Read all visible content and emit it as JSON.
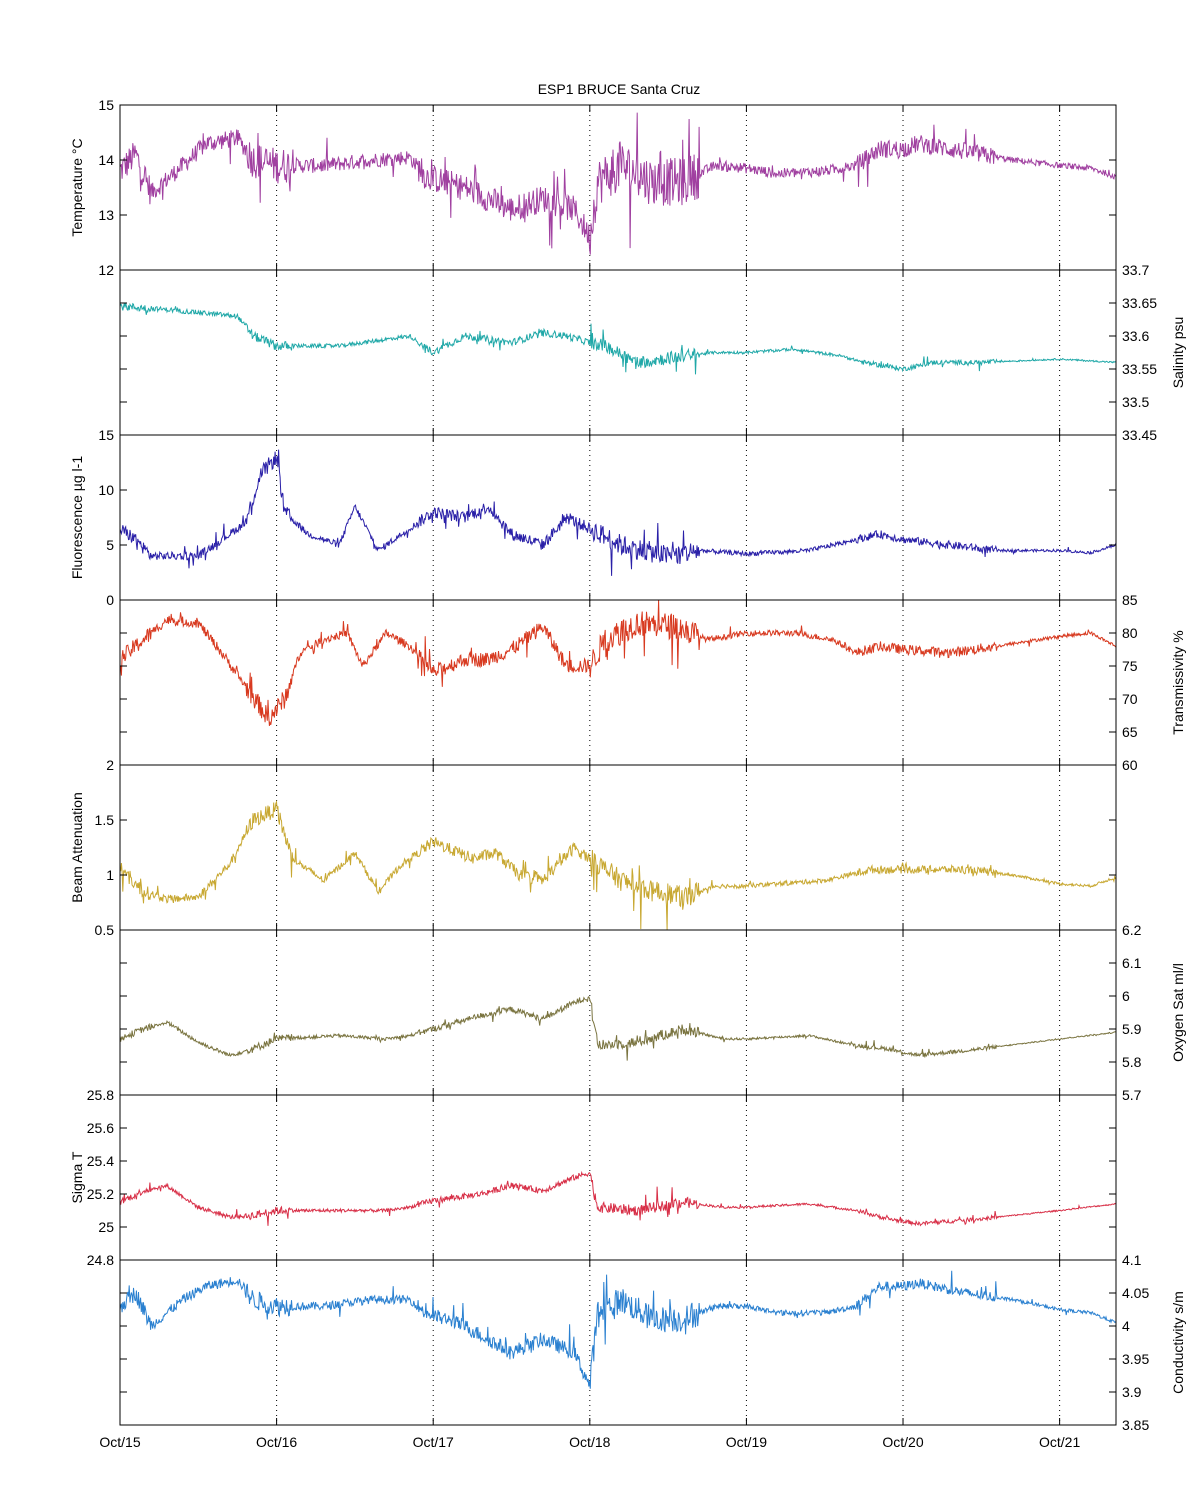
{
  "chart_data": {
    "type": "line",
    "title": "ESP1 BRUCE Santa Cruz",
    "x_tick_labels": [
      "Oct/15",
      "Oct/16",
      "Oct/17",
      "Oct/18",
      "Oct/19",
      "Oct/20",
      "Oct/21"
    ],
    "x_range_days": [
      15,
      21.36
    ],
    "grid": "vertical dotted at day ticks",
    "panels": [
      {
        "id": "temperature",
        "ylabel": "Temperature °C",
        "ylabel_side": "left",
        "ylim": [
          12,
          15
        ],
        "ticks": [
          12,
          13,
          14,
          15
        ],
        "tick_labels": [
          "12",
          "13",
          "14",
          "15"
        ],
        "color": "#a040a0",
        "amplitude": 0.55,
        "series": [
          [
            15.0,
            13.8
          ],
          [
            15.1,
            14.1
          ],
          [
            15.2,
            13.4
          ],
          [
            15.4,
            13.9
          ],
          [
            15.55,
            14.3
          ],
          [
            15.75,
            14.4
          ],
          [
            15.85,
            14.0
          ],
          [
            16.0,
            13.9
          ],
          [
            16.3,
            13.9
          ],
          [
            16.6,
            14.0
          ],
          [
            16.85,
            14.05
          ],
          [
            16.95,
            13.7
          ],
          [
            17.2,
            13.5
          ],
          [
            17.35,
            13.3
          ],
          [
            17.5,
            13.1
          ],
          [
            17.7,
            13.3
          ],
          [
            17.9,
            13.1
          ],
          [
            18.0,
            12.6
          ],
          [
            18.05,
            13.6
          ],
          [
            18.2,
            13.9
          ],
          [
            18.4,
            13.6
          ],
          [
            18.6,
            13.6
          ],
          [
            18.8,
            13.9
          ],
          [
            19.0,
            13.85
          ],
          [
            19.2,
            13.75
          ],
          [
            19.5,
            13.8
          ],
          [
            19.7,
            13.9
          ],
          [
            19.85,
            14.2
          ],
          [
            20.0,
            14.2
          ],
          [
            20.1,
            14.3
          ],
          [
            20.4,
            14.15
          ],
          [
            20.7,
            14.0
          ],
          [
            21.0,
            13.9
          ],
          [
            21.2,
            13.85
          ],
          [
            21.36,
            13.7
          ]
        ]
      },
      {
        "id": "salinity",
        "ylabel": "Salinity psu",
        "ylabel_side": "right",
        "ylim": [
          33.45,
          33.7
        ],
        "ticks": [
          33.45,
          33.5,
          33.55,
          33.6,
          33.65,
          33.7
        ],
        "tick_labels": [
          "33.45",
          "33.5",
          "33.55",
          "33.6",
          "33.65",
          "33.7"
        ],
        "color": "#20a8a8",
        "amplitude": 0.012,
        "series": [
          [
            15.0,
            33.645
          ],
          [
            15.3,
            33.64
          ],
          [
            15.75,
            33.63
          ],
          [
            15.85,
            33.6
          ],
          [
            16.0,
            33.585
          ],
          [
            16.4,
            33.585
          ],
          [
            16.7,
            33.595
          ],
          [
            16.85,
            33.6
          ],
          [
            17.0,
            33.575
          ],
          [
            17.2,
            33.6
          ],
          [
            17.5,
            33.59
          ],
          [
            17.7,
            33.605
          ],
          [
            17.85,
            33.6
          ],
          [
            18.0,
            33.59
          ],
          [
            18.1,
            33.585
          ],
          [
            18.3,
            33.56
          ],
          [
            18.6,
            33.57
          ],
          [
            18.8,
            33.575
          ],
          [
            19.0,
            33.575
          ],
          [
            19.3,
            33.58
          ],
          [
            19.6,
            33.57
          ],
          [
            19.75,
            33.56
          ],
          [
            20.0,
            33.55
          ],
          [
            20.2,
            33.56
          ],
          [
            20.5,
            33.56
          ],
          [
            21.0,
            33.565
          ],
          [
            21.36,
            33.56
          ]
        ]
      },
      {
        "id": "fluorescence",
        "ylabel": "Fluorescence µg l-1",
        "ylabel_side": "left",
        "ylim": [
          0,
          15
        ],
        "ticks": [
          0,
          5,
          10,
          15
        ],
        "tick_labels": [
          "0",
          "5",
          "10",
          "15"
        ],
        "color": "#2a20a8",
        "amplitude": 1.2,
        "series": [
          [
            15.0,
            6.5
          ],
          [
            15.1,
            5.5
          ],
          [
            15.2,
            4.0
          ],
          [
            15.5,
            4.0
          ],
          [
            15.7,
            6.0
          ],
          [
            15.8,
            7.0
          ],
          [
            15.9,
            11.5
          ],
          [
            16.0,
            13.0
          ],
          [
            16.05,
            8.0
          ],
          [
            16.2,
            6.0
          ],
          [
            16.4,
            5.0
          ],
          [
            16.5,
            8.5
          ],
          [
            16.65,
            4.5
          ],
          [
            16.8,
            6.0
          ],
          [
            17.0,
            8.0
          ],
          [
            17.2,
            7.5
          ],
          [
            17.35,
            8.5
          ],
          [
            17.5,
            6.0
          ],
          [
            17.7,
            5.0
          ],
          [
            17.85,
            7.5
          ],
          [
            18.0,
            6.5
          ],
          [
            18.2,
            5.0
          ],
          [
            18.5,
            4.0
          ],
          [
            18.7,
            4.5
          ],
          [
            19.0,
            4.2
          ],
          [
            19.4,
            4.5
          ],
          [
            19.7,
            5.5
          ],
          [
            19.85,
            6.0
          ],
          [
            20.0,
            5.5
          ],
          [
            20.3,
            5.0
          ],
          [
            20.6,
            4.5
          ],
          [
            21.0,
            4.5
          ],
          [
            21.2,
            4.3
          ],
          [
            21.36,
            5.0
          ]
        ]
      },
      {
        "id": "transmissivity",
        "ylabel": "Transmissivity %",
        "ylabel_side": "right",
        "ylim": [
          60,
          85
        ],
        "ticks": [
          60,
          65,
          70,
          75,
          80,
          85
        ],
        "tick_labels": [
          "60",
          "65",
          "70",
          "75",
          "80",
          "85"
        ],
        "color": "#d83a20",
        "amplitude": 2.5,
        "series": [
          [
            15.0,
            76.0
          ],
          [
            15.15,
            79.0
          ],
          [
            15.3,
            82.0
          ],
          [
            15.5,
            81.5
          ],
          [
            15.65,
            77.0
          ],
          [
            15.8,
            72.0
          ],
          [
            15.95,
            67.0
          ],
          [
            16.05,
            70.0
          ],
          [
            16.15,
            77.0
          ],
          [
            16.3,
            79.0
          ],
          [
            16.45,
            80.0
          ],
          [
            16.55,
            75.0
          ],
          [
            16.7,
            80.0
          ],
          [
            16.85,
            78.0
          ],
          [
            17.0,
            74.0
          ],
          [
            17.2,
            76.0
          ],
          [
            17.35,
            76.0
          ],
          [
            17.5,
            77.5
          ],
          [
            17.7,
            81.0
          ],
          [
            17.85,
            75.0
          ],
          [
            18.0,
            75.0
          ],
          [
            18.1,
            79.0
          ],
          [
            18.3,
            81.5
          ],
          [
            18.55,
            81.0
          ],
          [
            18.75,
            79.0
          ],
          [
            19.0,
            80.0
          ],
          [
            19.3,
            80.0
          ],
          [
            19.55,
            79.0
          ],
          [
            19.7,
            77.0
          ],
          [
            19.85,
            78.0
          ],
          [
            20.0,
            77.5
          ],
          [
            20.3,
            77.0
          ],
          [
            20.6,
            78.0
          ],
          [
            21.0,
            79.5
          ],
          [
            21.2,
            80.0
          ],
          [
            21.36,
            78.0
          ]
        ]
      },
      {
        "id": "beam-attenuation",
        "ylabel": "Beam Attenuation",
        "ylabel_side": "left",
        "ylim": [
          0.5,
          2
        ],
        "ticks": [
          0.5,
          1,
          1.5,
          2
        ],
        "tick_labels": [
          "0.5",
          "1",
          "1.5",
          "2"
        ],
        "color": "#c8a832",
        "amplitude": 0.12,
        "series": [
          [
            15.0,
            1.05
          ],
          [
            15.15,
            0.85
          ],
          [
            15.3,
            0.78
          ],
          [
            15.5,
            0.8
          ],
          [
            15.7,
            1.1
          ],
          [
            15.85,
            1.5
          ],
          [
            16.0,
            1.6
          ],
          [
            16.1,
            1.15
          ],
          [
            16.3,
            0.95
          ],
          [
            16.5,
            1.2
          ],
          [
            16.65,
            0.85
          ],
          [
            16.8,
            1.1
          ],
          [
            17.0,
            1.3
          ],
          [
            17.25,
            1.15
          ],
          [
            17.4,
            1.2
          ],
          [
            17.55,
            1.0
          ],
          [
            17.7,
            0.95
          ],
          [
            17.9,
            1.25
          ],
          [
            18.0,
            1.15
          ],
          [
            18.2,
            0.95
          ],
          [
            18.4,
            0.85
          ],
          [
            18.6,
            0.8
          ],
          [
            18.8,
            0.9
          ],
          [
            19.0,
            0.9
          ],
          [
            19.5,
            0.95
          ],
          [
            19.8,
            1.05
          ],
          [
            20.0,
            1.05
          ],
          [
            20.4,
            1.05
          ],
          [
            20.7,
            1.0
          ],
          [
            21.0,
            0.92
          ],
          [
            21.2,
            0.9
          ],
          [
            21.36,
            0.98
          ]
        ]
      },
      {
        "id": "oxygen-sat",
        "ylabel": "Oxygen Sat ml/l",
        "ylabel_side": "right",
        "ylim": [
          5.7,
          6.2
        ],
        "ticks": [
          5.7,
          5.8,
          5.9,
          6,
          6.1,
          6.2
        ],
        "tick_labels": [
          "5.7",
          "5.8",
          "5.9",
          "6",
          "6.1",
          "6.2"
        ],
        "color": "#7a7440",
        "amplitude": 0.02,
        "series": [
          [
            15.0,
            5.87
          ],
          [
            15.15,
            5.9
          ],
          [
            15.3,
            5.92
          ],
          [
            15.5,
            5.86
          ],
          [
            15.7,
            5.82
          ],
          [
            15.85,
            5.84
          ],
          [
            16.0,
            5.87
          ],
          [
            16.4,
            5.88
          ],
          [
            16.7,
            5.87
          ],
          [
            16.85,
            5.88
          ],
          [
            17.0,
            5.9
          ],
          [
            17.3,
            5.94
          ],
          [
            17.5,
            5.96
          ],
          [
            17.7,
            5.93
          ],
          [
            17.9,
            5.98
          ],
          [
            18.0,
            6.0
          ],
          [
            18.05,
            5.85
          ],
          [
            18.3,
            5.86
          ],
          [
            18.6,
            5.9
          ],
          [
            18.85,
            5.87
          ],
          [
            19.0,
            5.87
          ],
          [
            19.4,
            5.88
          ],
          [
            19.7,
            5.85
          ],
          [
            19.9,
            5.84
          ],
          [
            20.1,
            5.82
          ],
          [
            20.5,
            5.84
          ],
          [
            21.0,
            5.87
          ],
          [
            21.36,
            5.89
          ]
        ]
      },
      {
        "id": "sigma-t",
        "ylabel": "Sigma T",
        "ylabel_side": "left",
        "ylim": [
          24.8,
          25.8
        ],
        "ticks": [
          24.8,
          25,
          25.2,
          25.4,
          25.6,
          25.8
        ],
        "tick_labels": [
          "24.8",
          "25",
          "25.2",
          "25.4",
          "25.6",
          "25.8"
        ],
        "color": "#d83048",
        "amplitude": 0.04,
        "series": [
          [
            15.0,
            25.15
          ],
          [
            15.15,
            25.22
          ],
          [
            15.3,
            25.25
          ],
          [
            15.5,
            25.12
          ],
          [
            15.7,
            25.06
          ],
          [
            15.85,
            25.07
          ],
          [
            16.0,
            25.1
          ],
          [
            16.4,
            25.1
          ],
          [
            16.7,
            25.1
          ],
          [
            16.85,
            25.12
          ],
          [
            17.0,
            25.16
          ],
          [
            17.3,
            25.2
          ],
          [
            17.5,
            25.25
          ],
          [
            17.7,
            25.22
          ],
          [
            17.9,
            25.3
          ],
          [
            18.0,
            25.33
          ],
          [
            18.05,
            25.12
          ],
          [
            18.3,
            25.1
          ],
          [
            18.6,
            25.15
          ],
          [
            18.85,
            25.12
          ],
          [
            19.0,
            25.12
          ],
          [
            19.4,
            25.14
          ],
          [
            19.7,
            25.1
          ],
          [
            19.9,
            25.05
          ],
          [
            20.1,
            25.02
          ],
          [
            20.5,
            25.05
          ],
          [
            21.0,
            25.1
          ],
          [
            21.36,
            25.14
          ]
        ]
      },
      {
        "id": "conductivity",
        "ylabel": "Conductivity s/m",
        "ylabel_side": "right",
        "ylim": [
          3.85,
          4.1
        ],
        "ticks": [
          3.85,
          3.9,
          3.95,
          4,
          4.05,
          4.1
        ],
        "tick_labels": [
          "3.85",
          "3.9",
          "3.95",
          "4",
          "4.05",
          "4.1"
        ],
        "color": "#2a80d0",
        "amplitude": 0.025,
        "series": [
          [
            15.0,
            4.03
          ],
          [
            15.1,
            4.05
          ],
          [
            15.2,
            4.0
          ],
          [
            15.4,
            4.04
          ],
          [
            15.55,
            4.06
          ],
          [
            15.75,
            4.07
          ],
          [
            15.85,
            4.04
          ],
          [
            16.0,
            4.03
          ],
          [
            16.3,
            4.03
          ],
          [
            16.6,
            4.04
          ],
          [
            16.85,
            4.04
          ],
          [
            16.95,
            4.02
          ],
          [
            17.2,
            4.0
          ],
          [
            17.35,
            3.98
          ],
          [
            17.5,
            3.96
          ],
          [
            17.7,
            3.98
          ],
          [
            17.9,
            3.96
          ],
          [
            18.0,
            3.91
          ],
          [
            18.05,
            4.02
          ],
          [
            18.2,
            4.04
          ],
          [
            18.4,
            4.01
          ],
          [
            18.6,
            4.01
          ],
          [
            18.8,
            4.03
          ],
          [
            19.0,
            4.03
          ],
          [
            19.2,
            4.02
          ],
          [
            19.5,
            4.02
          ],
          [
            19.7,
            4.03
          ],
          [
            19.85,
            4.06
          ],
          [
            20.0,
            4.06
          ],
          [
            20.1,
            4.065
          ],
          [
            20.4,
            4.05
          ],
          [
            20.7,
            4.04
          ],
          [
            21.0,
            4.025
          ],
          [
            21.2,
            4.02
          ],
          [
            21.36,
            4.005
          ]
        ]
      }
    ]
  }
}
